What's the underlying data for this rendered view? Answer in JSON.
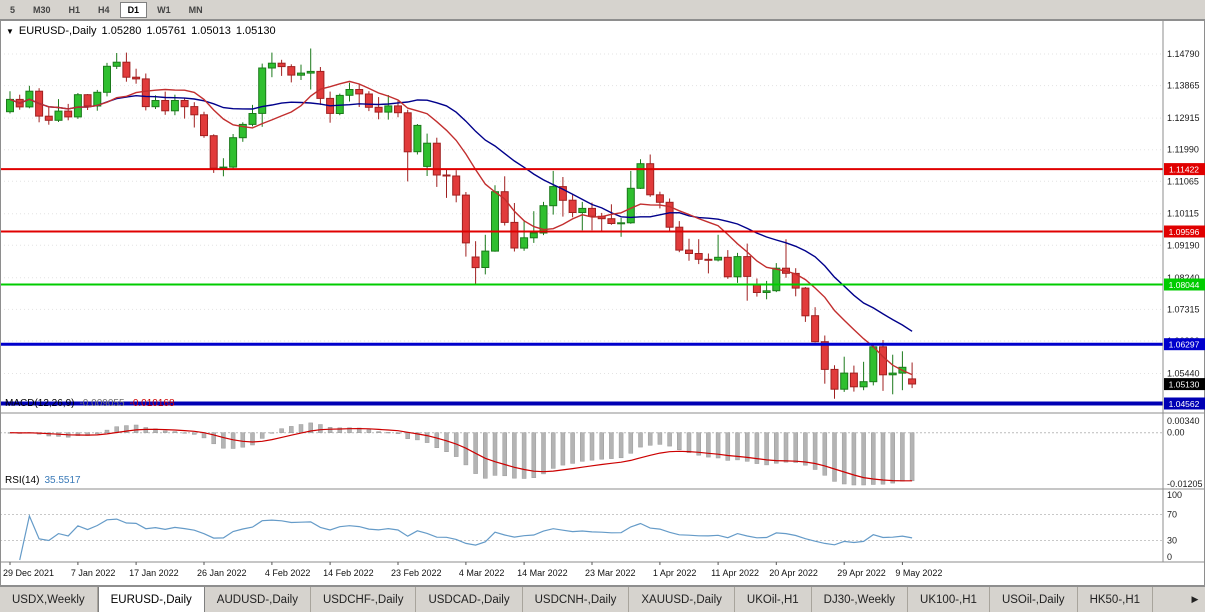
{
  "icons": {
    "dropdown": "▼",
    "tab_scroll": "▶"
  },
  "toolbar": {
    "timeframes": [
      "5",
      "M30",
      "H1",
      "H4",
      "D1",
      "W1",
      "MN"
    ],
    "active": "D1"
  },
  "chart_title": {
    "symbol": "EURUSD-,Daily",
    "open": "1.05280",
    "high": "1.05761",
    "low": "1.05013",
    "close": "1.05130"
  },
  "chart_data": {
    "type": "candlestick",
    "symbol": "EURUSD-,Daily",
    "ylim": [
      1.044,
      1.152
    ],
    "axis_labels": [
      "1.14790",
      "1.13865",
      "1.12915",
      "1.11990",
      "1.11065",
      "1.10115",
      "1.09190",
      "1.08240",
      "1.07315",
      "1.06390",
      "1.05440"
    ],
    "hlines": [
      {
        "price": 1.11422,
        "label": "1.11422",
        "color": "#e00000",
        "width": 2
      },
      {
        "price": 1.09596,
        "label": "1.09596",
        "color": "#e00000",
        "width": 2
      },
      {
        "price": 1.08044,
        "label": "1.08044",
        "color": "#00cc00",
        "width": 2
      },
      {
        "price": 1.06297,
        "label": "1.06297",
        "color": "#0000cc",
        "width": 3
      },
      {
        "price": 1.04562,
        "label": "1.04562",
        "color": "#0000b4",
        "width": 4
      }
    ],
    "current_price": {
      "price": 1.0513,
      "label": "1.05130",
      "color": "#000000"
    },
    "moving_averages": [
      {
        "name": "ma-slow",
        "period": 20,
        "color": "#00008b"
      },
      {
        "name": "ma-fast",
        "period": 10,
        "color": "#c22e2e"
      }
    ],
    "dates": [
      [
        "29 Dec 2021",
        0
      ],
      [
        "7 Jan 2022",
        7
      ],
      [
        "17 Jan 2022",
        13
      ],
      [
        "26 Jan 2022",
        20
      ],
      [
        "4 Feb 2022",
        27
      ],
      [
        "14 Feb 2022",
        33
      ],
      [
        "23 Feb 2022",
        40
      ],
      [
        "4 Mar 2022",
        47
      ],
      [
        "14 Mar 2022",
        53
      ],
      [
        "23 Mar 2022",
        60
      ],
      [
        "1 Apr 2022",
        67
      ],
      [
        "11 Apr 2022",
        73
      ],
      [
        "20 Apr 2022",
        79
      ],
      [
        "29 Apr 2022",
        86
      ],
      [
        "9 May 2022",
        92
      ]
    ],
    "ohlc": [
      [
        1.131,
        1.137,
        1.1305,
        1.1346
      ],
      [
        1.1346,
        1.136,
        1.1316,
        1.1324
      ],
      [
        1.1324,
        1.1386,
        1.132,
        1.137
      ],
      [
        1.137,
        1.1379,
        1.1279,
        1.1297
      ],
      [
        1.1297,
        1.1323,
        1.1272,
        1.1285
      ],
      [
        1.1285,
        1.1347,
        1.128,
        1.1312
      ],
      [
        1.1312,
        1.1333,
        1.1285,
        1.1295
      ],
      [
        1.1295,
        1.1365,
        1.1289,
        1.136
      ],
      [
        1.136,
        1.1362,
        1.1315,
        1.1327
      ],
      [
        1.1327,
        1.1374,
        1.1313,
        1.1367
      ],
      [
        1.1367,
        1.1453,
        1.1355,
        1.1443
      ],
      [
        1.1443,
        1.1482,
        1.1435,
        1.1455
      ],
      [
        1.1455,
        1.1483,
        1.1398,
        1.1411
      ],
      [
        1.1411,
        1.1436,
        1.1392,
        1.1406
      ],
      [
        1.1406,
        1.1422,
        1.1314,
        1.1325
      ],
      [
        1.1325,
        1.1358,
        1.1318,
        1.1343
      ],
      [
        1.1343,
        1.1369,
        1.1301,
        1.1313
      ],
      [
        1.1313,
        1.136,
        1.13,
        1.1343
      ],
      [
        1.1343,
        1.1349,
        1.129,
        1.1325
      ],
      [
        1.1325,
        1.1338,
        1.1264,
        1.1301
      ],
      [
        1.1301,
        1.131,
        1.1234,
        1.124
      ],
      [
        1.124,
        1.1244,
        1.1131,
        1.1145
      ],
      [
        1.1145,
        1.1174,
        1.1121,
        1.1148
      ],
      [
        1.1148,
        1.1245,
        1.114,
        1.1234
      ],
      [
        1.1234,
        1.1279,
        1.1222,
        1.1273
      ],
      [
        1.1273,
        1.133,
        1.1267,
        1.1305
      ],
      [
        1.1305,
        1.1451,
        1.1266,
        1.1438
      ],
      [
        1.1438,
        1.1483,
        1.1411,
        1.1452
      ],
      [
        1.1452,
        1.1462,
        1.1415,
        1.1442
      ],
      [
        1.1442,
        1.1449,
        1.1396,
        1.1417
      ],
      [
        1.1417,
        1.1448,
        1.1403,
        1.1423
      ],
      [
        1.1423,
        1.1495,
        1.1375,
        1.1428
      ],
      [
        1.1428,
        1.1441,
        1.133,
        1.1349
      ],
      [
        1.1349,
        1.1369,
        1.1278,
        1.1305
      ],
      [
        1.1305,
        1.1363,
        1.13,
        1.1358
      ],
      [
        1.1358,
        1.1395,
        1.134,
        1.1375
      ],
      [
        1.1375,
        1.1392,
        1.1324,
        1.1362
      ],
      [
        1.1362,
        1.137,
        1.1312,
        1.1323
      ],
      [
        1.1323,
        1.1353,
        1.1288,
        1.1309
      ],
      [
        1.1309,
        1.1359,
        1.1287,
        1.1327
      ],
      [
        1.1327,
        1.1342,
        1.1294,
        1.1307
      ],
      [
        1.1307,
        1.1316,
        1.1106,
        1.1193
      ],
      [
        1.1193,
        1.1274,
        1.1185,
        1.127
      ],
      [
        1.115,
        1.1246,
        1.1122,
        1.1218
      ],
      [
        1.1218,
        1.1234,
        1.109,
        1.1125
      ],
      [
        1.1125,
        1.1144,
        1.1058,
        1.1122
      ],
      [
        1.1122,
        1.1139,
        1.1045,
        1.1066
      ],
      [
        1.1066,
        1.1075,
        1.0886,
        1.0926
      ],
      [
        1.0885,
        1.0931,
        1.0806,
        1.0854
      ],
      [
        1.0854,
        1.095,
        1.0834,
        1.0902
      ],
      [
        1.0902,
        1.1095,
        1.09,
        1.1076
      ],
      [
        1.1076,
        1.1121,
        1.0977,
        1.0986
      ],
      [
        1.0986,
        1.1043,
        1.0901,
        1.0911
      ],
      [
        1.0911,
        1.0993,
        1.0903,
        1.0941
      ],
      [
        1.0941,
        1.1019,
        1.0926,
        1.0955
      ],
      [
        1.0955,
        1.1046,
        1.0949,
        1.1035
      ],
      [
        1.1035,
        1.1137,
        1.1009,
        1.1091
      ],
      [
        1.1091,
        1.1119,
        1.1003,
        1.1051
      ],
      [
        1.1051,
        1.1069,
        1.1001,
        1.1015
      ],
      [
        1.1015,
        1.1046,
        1.0963,
        1.1027
      ],
      [
        1.1027,
        1.1044,
        1.0963,
        1.1004
      ],
      [
        1.1004,
        1.1014,
        1.096,
        1.0997
      ],
      [
        1.0997,
        1.1039,
        1.0979,
        1.0983
      ],
      [
        1.0983,
        1.0999,
        1.0944,
        1.0985
      ],
      [
        1.0985,
        1.1137,
        1.0982,
        1.1086
      ],
      [
        1.1086,
        1.1171,
        1.1084,
        1.1158
      ],
      [
        1.1158,
        1.1185,
        1.1061,
        1.1067
      ],
      [
        1.1067,
        1.1076,
        1.1027,
        1.1045
      ],
      [
        1.1045,
        1.1056,
        1.096,
        1.0972
      ],
      [
        1.0972,
        1.099,
        1.0899,
        1.0905
      ],
      [
        1.0905,
        1.0938,
        1.0874,
        1.0895
      ],
      [
        1.0895,
        1.0937,
        1.0864,
        1.0878
      ],
      [
        1.0878,
        1.0895,
        1.0837,
        1.0876
      ],
      [
        1.0876,
        1.095,
        1.0872,
        1.0884
      ],
      [
        1.0884,
        1.0905,
        1.0821,
        1.0827
      ],
      [
        1.0827,
        1.0897,
        1.0809,
        1.0886
      ],
      [
        1.0886,
        1.0924,
        1.0757,
        1.0828
      ],
      [
        1.0805,
        1.0822,
        1.0769,
        1.0781
      ],
      [
        1.0781,
        1.0815,
        1.0761,
        1.0786
      ],
      [
        1.0786,
        1.0867,
        1.0782,
        1.0852
      ],
      [
        1.0852,
        1.0937,
        1.0824,
        1.0837
      ],
      [
        1.0837,
        1.0852,
        1.077,
        1.0794
      ],
      [
        1.0794,
        1.0797,
        1.0695,
        1.0713
      ],
      [
        1.0713,
        1.0738,
        1.0635,
        1.0637
      ],
      [
        1.0637,
        1.0655,
        1.0514,
        1.0556
      ],
      [
        1.0556,
        1.0568,
        1.047,
        1.0498
      ],
      [
        1.0498,
        1.0593,
        1.049,
        1.0545
      ],
      [
        1.0545,
        1.0567,
        1.0491,
        1.0505
      ],
      [
        1.0505,
        1.0578,
        1.0495,
        1.052
      ],
      [
        1.052,
        1.0632,
        1.0509,
        1.0622
      ],
      [
        1.0622,
        1.0642,
        1.0493,
        1.054
      ],
      [
        1.054,
        1.0599,
        1.0483,
        1.0545
      ],
      [
        1.0545,
        1.0609,
        1.0495,
        1.0562
      ],
      [
        1.0528,
        1.05761,
        1.05013,
        1.0513
      ]
    ]
  },
  "macd": {
    "label": "MACD(12,26,9)",
    "value_main": "-0.009055",
    "value_signal": "-0.010168",
    "axis_top": "0.00340",
    "axis_zero": "0.00",
    "axis_bottom": "-0.01205",
    "params": {
      "fast": 12,
      "slow": 26,
      "signal": 9
    },
    "ylim": [
      -0.01205,
      0.0034
    ]
  },
  "rsi": {
    "label": "RSI(14)",
    "value": "35.5517",
    "period": 14,
    "levels": [
      70,
      30
    ],
    "axis": [
      "100",
      "70",
      "30",
      "0"
    ],
    "ylim": [
      0,
      100
    ]
  },
  "tabs": {
    "items": [
      "USDX,Weekly",
      "EURUSD-,Daily",
      "AUDUSD-,Daily",
      "USDCHF-,Daily",
      "USDCAD-,Daily",
      "USDCNH-,Daily",
      "XAUUSD-,Daily",
      "UKOil-,H1",
      "DJ30-,Weekly",
      "UK100-,H1",
      "USOil-,Daily",
      "HK50-,H1"
    ],
    "active": "EURUSD-,Daily"
  },
  "colors": {
    "up_body": "#2fbf2f",
    "up_border": "#1b7a1b",
    "down_body": "#e13b3b",
    "down_border": "#a02020",
    "macd_hist": "#b4b4b4",
    "macd_signal": "#cc0000",
    "rsi_line": "#659bc8",
    "grid": "#e3e3e3",
    "axis_text": "#1a1a1a",
    "pane_border": "#8e8e8e"
  }
}
